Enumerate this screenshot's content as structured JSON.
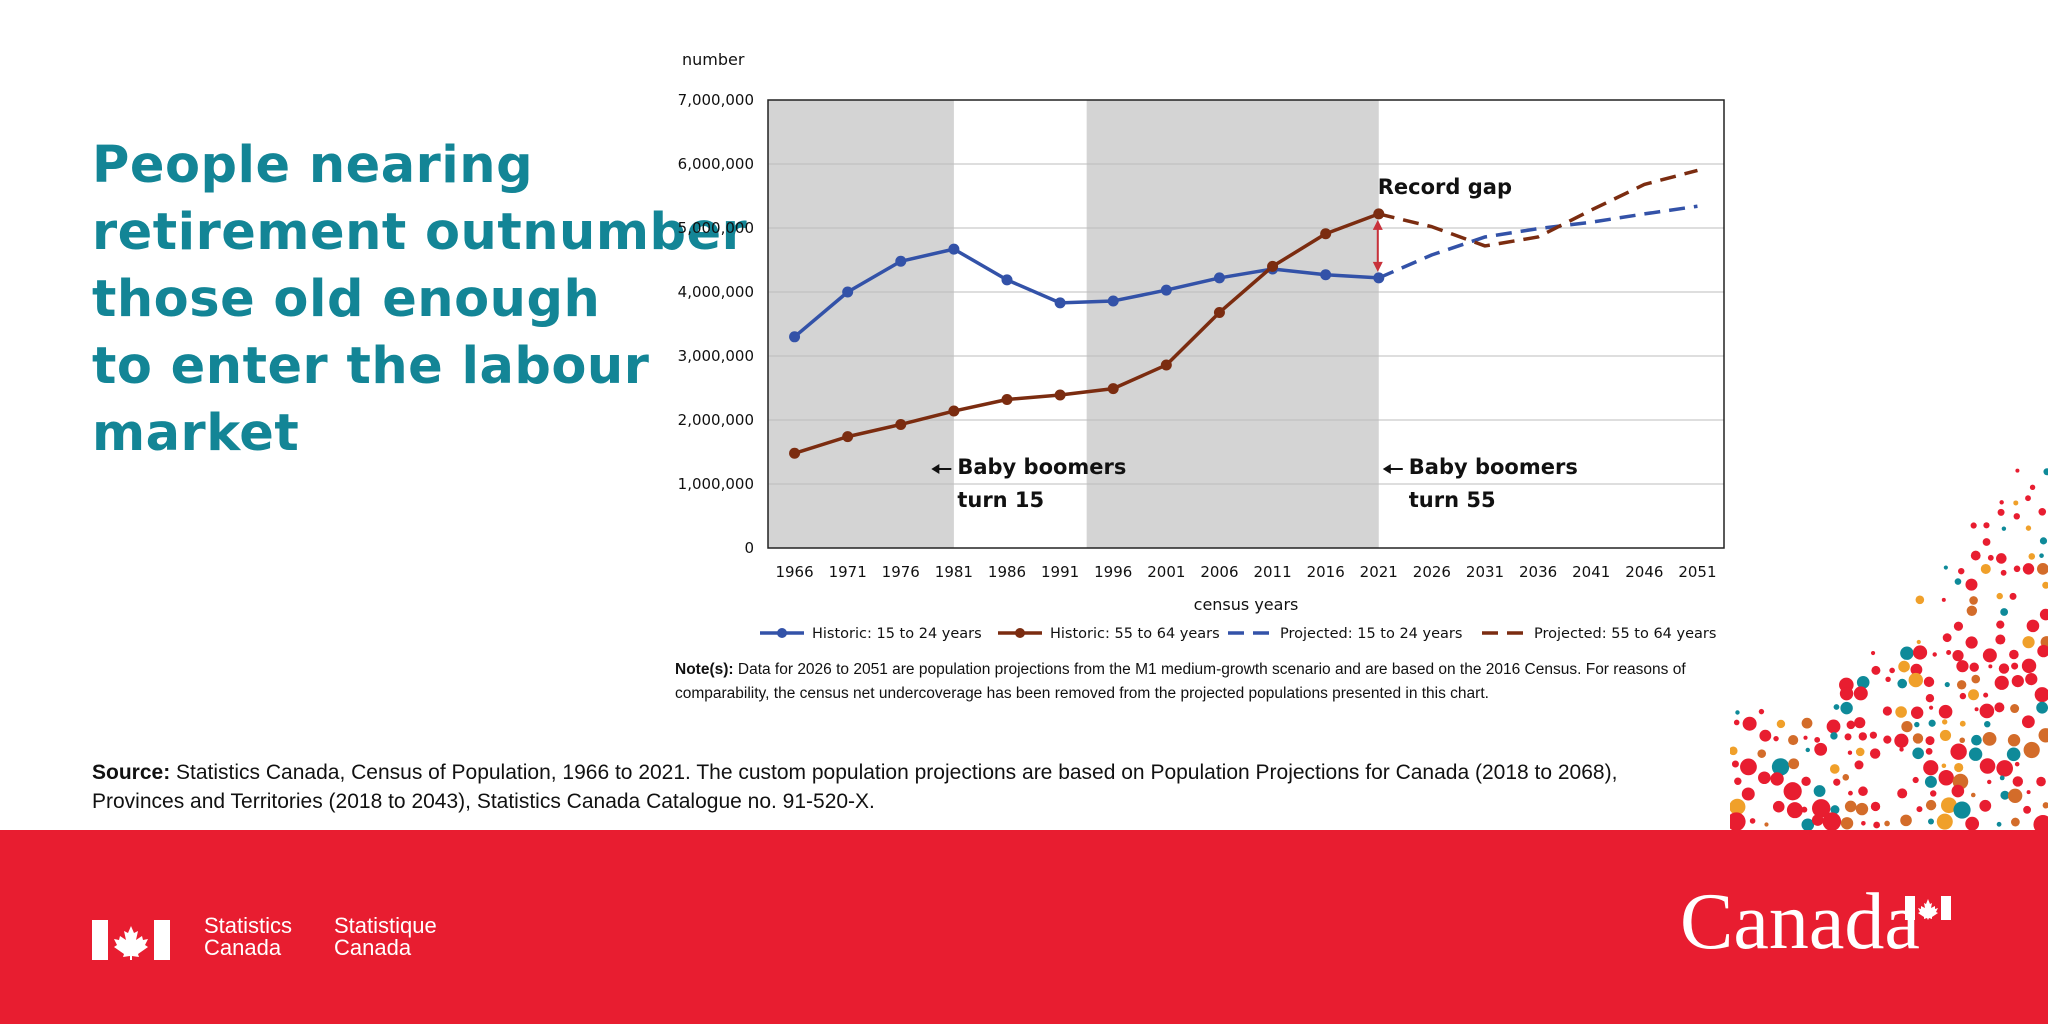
{
  "headline": {
    "lines": [
      "People nearing",
      "retirement outnumber",
      "those old enough",
      "to enter the labour",
      "market"
    ]
  },
  "chart_data": {
    "type": "line",
    "ylabel": "number",
    "xlabel": "census years",
    "ylim": [
      0,
      7000000
    ],
    "y_ticks": [
      "0",
      "1,000,000",
      "2,000,000",
      "3,000,000",
      "4,000,000",
      "5,000,000",
      "6,000,000",
      "7,000,000"
    ],
    "y_tick_values": [
      0,
      1000000,
      2000000,
      3000000,
      4000000,
      5000000,
      6000000,
      7000000
    ],
    "x": [
      "1966",
      "1971",
      "1976",
      "1981",
      "1986",
      "1991",
      "1996",
      "2001",
      "2006",
      "2011",
      "2016",
      "2021",
      "2026",
      "2031",
      "2036",
      "2041",
      "2046",
      "2051"
    ],
    "shaded_ranges": [
      [
        "1966",
        "1981"
      ],
      [
        "1996",
        "2021"
      ]
    ],
    "series": [
      {
        "name": "Historic: 15 to 24 years",
        "color": "#3352a8",
        "dashed": false,
        "markers": true,
        "x": [
          "1966",
          "1971",
          "1976",
          "1981",
          "1986",
          "1991",
          "1996",
          "2001",
          "2006",
          "2011",
          "2016",
          "2021"
        ],
        "values": [
          3300000,
          4000000,
          4480000,
          4670000,
          4190000,
          3830000,
          3860000,
          4030000,
          4220000,
          4360000,
          4270000,
          4220000
        ]
      },
      {
        "name": "Historic: 55 to 64 years",
        "color": "#7b2c10",
        "dashed": false,
        "markers": true,
        "x": [
          "1966",
          "1971",
          "1976",
          "1981",
          "1986",
          "1991",
          "1996",
          "2001",
          "2006",
          "2011",
          "2016",
          "2021"
        ],
        "values": [
          1480000,
          1740000,
          1930000,
          2140000,
          2320000,
          2390000,
          2490000,
          2860000,
          3680000,
          4400000,
          4910000,
          5220000
        ]
      },
      {
        "name": "Projected: 15 to 24 years",
        "color": "#3352a8",
        "dashed": true,
        "markers": false,
        "x": [
          "2021",
          "2026",
          "2031",
          "2036",
          "2041",
          "2046",
          "2051"
        ],
        "values": [
          4220000,
          4580000,
          4860000,
          4990000,
          5090000,
          5220000,
          5340000
        ]
      },
      {
        "name": "Projected: 55 to 64 years",
        "color": "#7b2c10",
        "dashed": true,
        "markers": false,
        "x": [
          "2021",
          "2026",
          "2031",
          "2036",
          "2041",
          "2046",
          "2051"
        ],
        "values": [
          5220000,
          5020000,
          4720000,
          4860000,
          5280000,
          5680000,
          5900000
        ]
      }
    ],
    "annotations": {
      "record_gap": "Record gap",
      "boomers15_line1": "Baby boomers",
      "boomers15_line2": "turn 15",
      "boomers55_line1": "Baby boomers",
      "boomers55_line2": "turn 55"
    },
    "colors": {
      "shade": "#d4d4d4",
      "gap_arrow": "#c8313a"
    }
  },
  "notes": {
    "label": "Note(s):",
    "text": "Data for 2026 to 2051 are population projections from the M1 medium-growth scenario and are based on the 2016 Census. For reasons of comparability, the census net undercoverage has been removed from the projected populations presented in this chart."
  },
  "source": {
    "label": "Source:",
    "text": "Statistics Canada, Census of Population, 1966 to 2021. The custom population projections are based on Population Projections for Canada (2018 to 2068), Provinces and Territories (2018 to 2043), Statistics Canada Catalogue no. 91-520-X."
  },
  "footer": {
    "wordmark_en_line1": "Statistics",
    "wordmark_en_line2": "Canada",
    "wordmark_fr_line1": "Statistique",
    "wordmark_fr_line2": "Canada",
    "canada_wordmark": "Canada",
    "background_color": "#e81d30"
  }
}
